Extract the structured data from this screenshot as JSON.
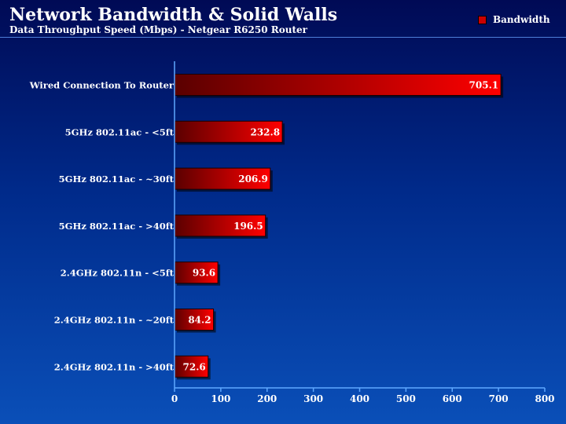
{
  "chart_data": {
    "type": "bar",
    "orientation": "horizontal",
    "title": "Network Bandwidth & Solid Walls",
    "subtitle": "Data Throughput Speed (Mbps) - Netgear R6250 Router",
    "categories": [
      "Wired Connection To Router",
      "5GHz 802.11ac - <5ft",
      "5GHz 802.11ac - ~30ft",
      "5GHz 802.11ac - >40ft",
      "2.4GHz 802.11n - <5ft",
      "2.4GHz 802.11n - ~20ft",
      "2.4GHz 802.11n - >40ft"
    ],
    "series": [
      {
        "name": "Bandwidth",
        "values": [
          705.1,
          232.8,
          206.9,
          196.5,
          93.6,
          84.2,
          72.6
        ]
      }
    ],
    "data_labels": [
      "705.1",
      "232.8",
      "206.9",
      "196.5",
      "93.6",
      "84.2",
      "72.6"
    ],
    "xlim": [
      0,
      800
    ],
    "x_ticks": [
      0,
      100,
      200,
      300,
      400,
      500,
      600,
      700,
      800
    ],
    "grid": false,
    "legend_position": "top-right",
    "colors": {
      "bar_dark": "#5a0000",
      "bar_light": "#ff0000",
      "axis": "#5fa8ff"
    }
  }
}
